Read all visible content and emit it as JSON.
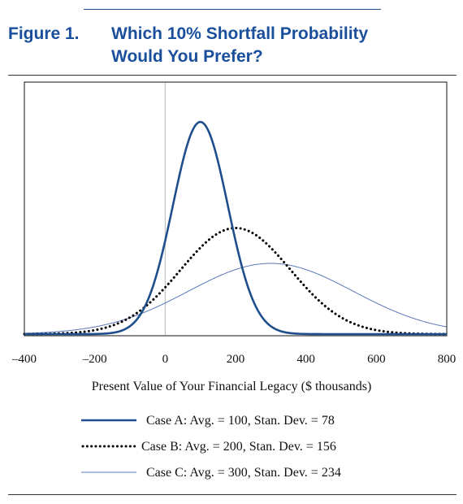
{
  "figure": {
    "label": "Figure 1.",
    "title_line1": "Which 10% Shortfall Probability",
    "title_line2": "Would You Prefer?"
  },
  "chart_data": {
    "type": "line",
    "title": "Which 10% Shortfall Probability Would You Prefer?",
    "xlabel": "Present Value of Your Financial Legacy ($ thousands)",
    "ylabel": "",
    "xlim": [
      -400,
      800
    ],
    "x_ticks": [
      -400,
      -200,
      0,
      200,
      400,
      600,
      800
    ],
    "x_tick_labels": [
      "–400",
      "–200",
      "0",
      "200",
      "400",
      "600",
      "800"
    ],
    "reference_line_x": 0,
    "series": [
      {
        "name": "Case A: Avg. = 100, Stan. Dev. = 78",
        "mean": 100,
        "std": 78,
        "style": "solid-thick",
        "color": "#1f4e8c"
      },
      {
        "name": "Case B: Avg. = 200, Stan. Dev. = 156",
        "mean": 200,
        "std": 156,
        "style": "dotted",
        "color": "#000000"
      },
      {
        "name": "Case C: Avg. = 300, Stan. Dev. = 234",
        "mean": 300,
        "std": 234,
        "style": "solid-thin",
        "color": "#5a78b8"
      }
    ],
    "legend_position": "bottom"
  }
}
